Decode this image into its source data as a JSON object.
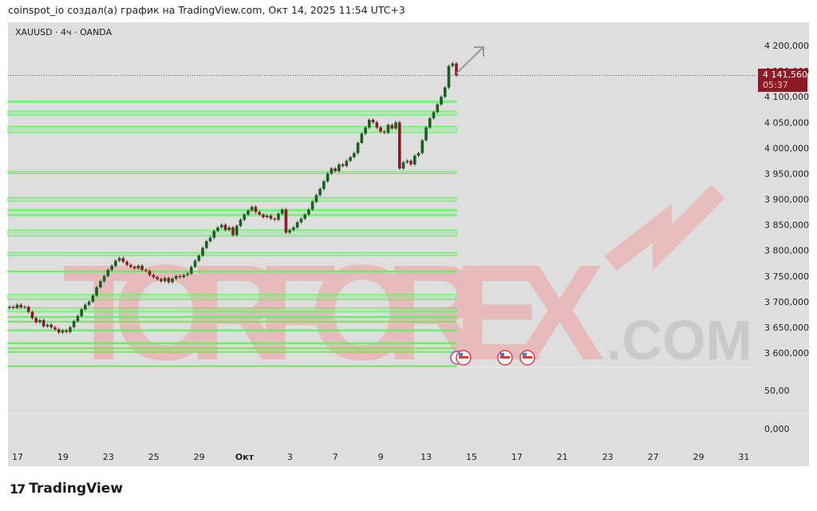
{
  "header": {
    "credit": "coinspot_io создал(а) график на TradingView.com, Окт 14, 2025 11:54 UTC+3"
  },
  "symbol_line": "XAUUSD · 4ч · OANDA",
  "watermark": "TORFOREX.COM",
  "brand": "TradingView",
  "colors": {
    "up": "#1b5e20",
    "down": "#8b1a24",
    "zone": "#5cf25c",
    "background": "#dedede",
    "price_tag": "#8b1a24"
  },
  "last_price": {
    "value": "4 141,560",
    "countdown": "05:37",
    "price": 4141.56
  },
  "panes": [
    {
      "label": "50,00"
    },
    {
      "label": "0,000"
    }
  ],
  "chart_data": {
    "type": "candlestick",
    "title": "XAUUSD · 4ч · OANDA",
    "ylim": [
      3575,
      4235
    ],
    "y_ticks": [
      {
        "v": 4200,
        "label": "4 200,000"
      },
      {
        "v": 4150,
        "label": "4 150,000"
      },
      {
        "v": 4100,
        "label": "4 100,000"
      },
      {
        "v": 4050,
        "label": "4 050,000"
      },
      {
        "v": 4000,
        "label": "4 000,000"
      },
      {
        "v": 3950,
        "label": "3 950,000"
      },
      {
        "v": 3900,
        "label": "3 900,000"
      },
      {
        "v": 3850,
        "label": "3 850,000"
      },
      {
        "v": 3800,
        "label": "3 800,000"
      },
      {
        "v": 3750,
        "label": "3 750,000"
      },
      {
        "v": 3700,
        "label": "3 700,000"
      },
      {
        "v": 3650,
        "label": "3 650,000"
      },
      {
        "v": 3600,
        "label": "3 600,000"
      }
    ],
    "x_ticks": [
      "17",
      "19",
      "23",
      "25",
      "29",
      "Окт",
      "3",
      "7",
      "9",
      "13",
      "15",
      "17",
      "21",
      "23",
      "27",
      "29",
      "31"
    ],
    "first_open": 3688,
    "closes": [
      3690,
      3688,
      3694,
      3689,
      3690,
      3680,
      3668,
      3660,
      3664,
      3652,
      3655,
      3650,
      3646,
      3640,
      3644,
      3641,
      3650,
      3662,
      3672,
      3685,
      3694,
      3700,
      3712,
      3728,
      3740,
      3750,
      3762,
      3770,
      3780,
      3785,
      3778,
      3772,
      3768,
      3765,
      3770,
      3762,
      3760,
      3752,
      3748,
      3744,
      3740,
      3746,
      3738,
      3745,
      3750,
      3748,
      3752,
      3755,
      3768,
      3780,
      3790,
      3805,
      3818,
      3825,
      3838,
      3845,
      3850,
      3840,
      3845,
      3830,
      3848,
      3860,
      3870,
      3878,
      3885,
      3875,
      3870,
      3865,
      3868,
      3862,
      3860,
      3872,
      3880,
      3835,
      3840,
      3845,
      3855,
      3862,
      3870,
      3880,
      3895,
      3908,
      3920,
      3935,
      3950,
      3960,
      3955,
      3968,
      3965,
      3975,
      3982,
      3990,
      4010,
      4028,
      4040,
      4055,
      4050,
      4040,
      4032,
      4030,
      4045,
      4038,
      4050,
      3960,
      3972,
      3975,
      3968,
      3985,
      3990,
      4015,
      4040,
      4058,
      4070,
      4085,
      4100,
      4118,
      4160,
      4165,
      4141.56
    ],
    "zones": [
      [
        4089,
        4092
      ],
      [
        4064,
        4072
      ],
      [
        4030,
        4042
      ],
      [
        3950,
        3954
      ],
      [
        3896,
        3903
      ],
      [
        3877,
        3880
      ],
      [
        3868,
        3871
      ],
      [
        3828,
        3840
      ],
      [
        3790,
        3796
      ],
      [
        3758,
        3760
      ],
      [
        3704,
        3714
      ],
      [
        3680,
        3688
      ],
      [
        3669,
        3671
      ],
      [
        3660,
        3662
      ],
      [
        3643,
        3645
      ],
      [
        3618,
        3620
      ],
      [
        3608,
        3610
      ],
      [
        3601,
        3603
      ],
      [
        3573,
        3575
      ]
    ]
  }
}
